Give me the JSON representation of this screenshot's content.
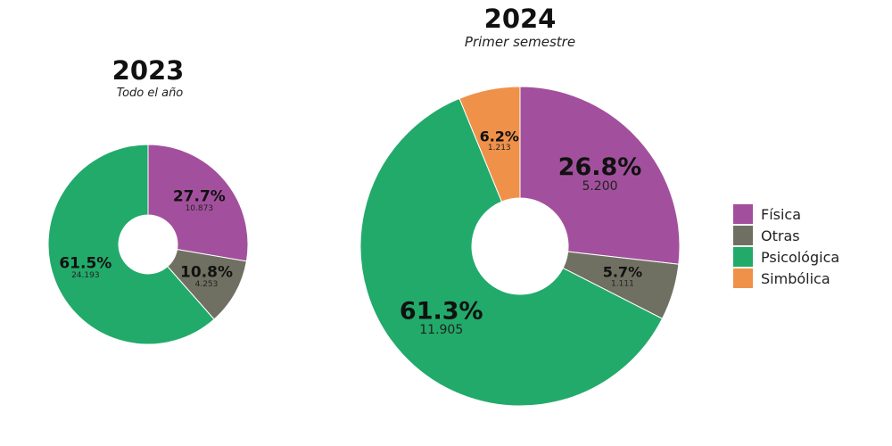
{
  "chart_data": [
    {
      "type": "pie",
      "title": "2023",
      "subtitle": "Todo el año",
      "slices": [
        {
          "label": "Física",
          "percent": 27.7,
          "value_label": "10.873",
          "value": 10873
        },
        {
          "label": "Otras",
          "percent": 10.8,
          "value_label": "4.253",
          "value": 4253
        },
        {
          "label": "Psicológica",
          "percent": 61.5,
          "value_label": "24.193",
          "value": 24193
        }
      ]
    },
    {
      "type": "pie",
      "title": "2024",
      "subtitle": "Primer semestre",
      "slices": [
        {
          "label": "Física",
          "percent": 26.8,
          "value_label": "5.200",
          "value": 5200
        },
        {
          "label": "Otras",
          "percent": 5.7,
          "value_label": "1.111",
          "value": 1111
        },
        {
          "label": "Psicológica",
          "percent": 61.3,
          "value_label": "11.905",
          "value": 11905
        },
        {
          "label": "Simbólica",
          "percent": 6.2,
          "value_label": "1.213",
          "value": 1213
        }
      ]
    }
  ],
  "legend": {
    "items": [
      {
        "label": "Física",
        "color": "#A2509D"
      },
      {
        "label": "Otras",
        "color": "#707062"
      },
      {
        "label": "Psicológica",
        "color": "#22AA6A"
      },
      {
        "label": "Simbólica",
        "color": "#F0914A"
      }
    ]
  }
}
